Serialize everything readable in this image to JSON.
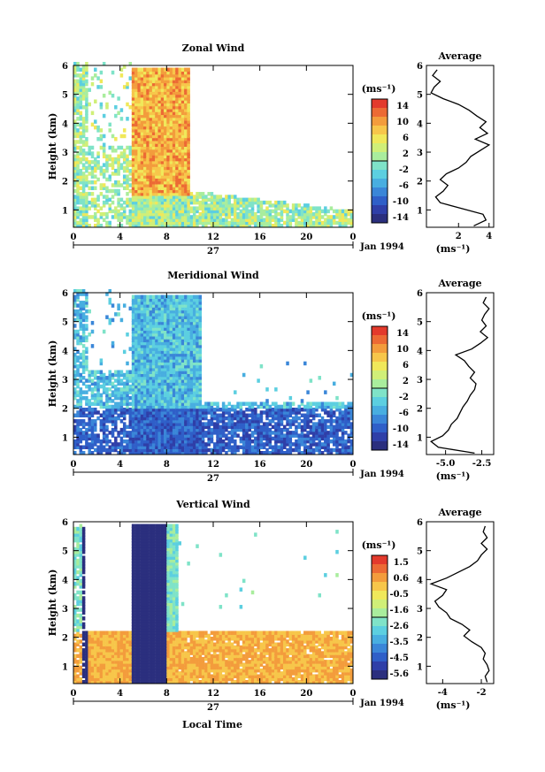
{
  "colors": {
    "scale": [
      "#2b2f7e",
      "#2f3fa8",
      "#2f5fc8",
      "#3a86d8",
      "#48aee0",
      "#5ccfe0",
      "#7fe3c8",
      "#a9ed9d",
      "#d0ef78",
      "#f0e85a",
      "#f7c64a",
      "#f39c3c",
      "#ec6a34",
      "#e33a2c"
    ]
  },
  "xaxis": {
    "ticks": [
      "0",
      "4",
      "8",
      "12",
      "16",
      "20",
      "0"
    ],
    "day_label": "27",
    "date_label": "Jan 1994",
    "label": "Local Time"
  },
  "yaxis_label": "Height (km)",
  "unit_label": "(ms⁻¹)",
  "avg_title": "Average",
  "panels": [
    {
      "title": "Zonal Wind",
      "colorbar_ticks": [
        "14",
        "10",
        "6",
        "2",
        "-2",
        "-6",
        "-10",
        "-14"
      ],
      "avg_xticks": [
        "2",
        "4"
      ],
      "avg_unit": "(ms⁻¹)"
    },
    {
      "title": "Meridional Wind",
      "colorbar_ticks": [
        "14",
        "10",
        "6",
        "2",
        "-2",
        "-6",
        "-10",
        "-14"
      ],
      "avg_xticks": [
        "-5.0",
        "-2.5"
      ],
      "avg_unit": "(ms⁻¹)"
    },
    {
      "title": "Vertical Wind",
      "colorbar_ticks": [
        "1.5",
        "0.6",
        "-0.5",
        "-1.6",
        "-2.6",
        "-3.5",
        "-4.5",
        "-5.6"
      ],
      "avg_xticks": [
        "-4",
        "-2"
      ],
      "avg_unit": "(ms⁻¹)"
    }
  ],
  "chart_data": [
    {
      "type": "heatmap",
      "title": "Zonal Wind",
      "xlabel": "",
      "ylabel": "Height (km)",
      "xlim": [
        0,
        24
      ],
      "ylim": [
        0.4,
        6
      ],
      "x_ticks": [
        "0",
        "4",
        "8",
        "12",
        "16",
        "20",
        "0"
      ],
      "y_ticks": [
        "1",
        "2",
        "3",
        "4",
        "5",
        "6"
      ],
      "colorbar": {
        "unit": "(ms⁻¹)",
        "range": [
          -14,
          14
        ],
        "ticks": [
          14,
          10,
          6,
          2,
          -2,
          -6,
          -10,
          -14
        ]
      },
      "average_profile": {
        "title": "Average",
        "xlabel": "(ms⁻¹)",
        "height_km": [
          0.4,
          0.6,
          0.8,
          1.0,
          1.2,
          1.4,
          1.6,
          1.8,
          2.0,
          2.2,
          2.4,
          2.6,
          2.8,
          3.0,
          3.2,
          3.4,
          3.6,
          3.8,
          4.0,
          4.2,
          4.4,
          4.6,
          4.8,
          5.0,
          5.2,
          5.4,
          5.6,
          5.8
        ],
        "value": [
          3.0,
          3.8,
          3.6,
          2.2,
          0.8,
          0.5,
          1.0,
          1.3,
          0.8,
          1.2,
          2.0,
          2.5,
          2.8,
          3.4,
          4.0,
          3.1,
          3.9,
          3.4,
          3.8,
          3.2,
          2.7,
          2.0,
          1.0,
          0.2,
          0.4,
          0.8,
          0.3,
          0.6
        ]
      }
    },
    {
      "type": "heatmap",
      "title": "Meridional Wind",
      "xlabel": "",
      "ylabel": "Height (km)",
      "xlim": [
        0,
        24
      ],
      "ylim": [
        0.4,
        6
      ],
      "x_ticks": [
        "0",
        "4",
        "8",
        "12",
        "16",
        "20",
        "0"
      ],
      "y_ticks": [
        "1",
        "2",
        "3",
        "4",
        "5",
        "6"
      ],
      "colorbar": {
        "unit": "(ms⁻¹)",
        "range": [
          -14,
          14
        ],
        "ticks": [
          14,
          10,
          6,
          2,
          -2,
          -6,
          -10,
          -14
        ]
      },
      "average_profile": {
        "title": "Average",
        "xlabel": "(ms⁻¹)",
        "height_km": [
          0.4,
          0.6,
          0.8,
          1.0,
          1.2,
          1.4,
          1.6,
          1.8,
          2.0,
          2.2,
          2.4,
          2.6,
          2.8,
          3.0,
          3.2,
          3.4,
          3.6,
          3.8,
          4.0,
          4.2,
          4.4,
          4.6,
          4.8,
          5.0,
          5.2,
          5.4,
          5.6,
          5.8
        ],
        "value": [
          -3.0,
          -5.5,
          -6.0,
          -5.2,
          -4.8,
          -4.6,
          -4.2,
          -4.0,
          -3.8,
          -3.5,
          -3.3,
          -3.0,
          -2.9,
          -3.3,
          -3.0,
          -3.4,
          -3.7,
          -4.3,
          -3.2,
          -2.6,
          -2.1,
          -2.6,
          -2.2,
          -2.5,
          -2.3,
          -2.0,
          -2.4,
          -2.2
        ]
      }
    },
    {
      "type": "heatmap",
      "title": "Vertical Wind",
      "xlabel": "Local Time",
      "ylabel": "Height (km)",
      "xlim": [
        0,
        24
      ],
      "ylim": [
        0.4,
        6
      ],
      "x_ticks": [
        "0",
        "4",
        "8",
        "12",
        "16",
        "20",
        "0"
      ],
      "y_ticks": [
        "1",
        "2",
        "3",
        "4",
        "5",
        "6"
      ],
      "colorbar": {
        "unit": "(ms⁻¹)",
        "range": [
          -5.6,
          1.5
        ],
        "ticks": [
          1.5,
          0.6,
          -0.5,
          -1.6,
          -2.6,
          -3.5,
          -4.5,
          -5.6
        ]
      },
      "average_profile": {
        "title": "Average",
        "xlabel": "(ms⁻¹)",
        "height_km": [
          0.4,
          0.6,
          0.8,
          1.0,
          1.2,
          1.4,
          1.6,
          1.8,
          2.0,
          2.2,
          2.4,
          2.6,
          2.8,
          3.0,
          3.2,
          3.4,
          3.6,
          3.8,
          4.0,
          4.2,
          4.4,
          4.6,
          4.8,
          5.0,
          5.2,
          5.4,
          5.6,
          5.8
        ],
        "value": [
          -1.7,
          -1.8,
          -1.6,
          -1.7,
          -1.9,
          -1.8,
          -2.0,
          -2.5,
          -2.9,
          -2.6,
          -3.0,
          -3.6,
          -3.8,
          -4.2,
          -4.4,
          -4.0,
          -3.8,
          -4.6,
          -3.8,
          -3.2,
          -2.6,
          -2.2,
          -2.0,
          -1.7,
          -2.0,
          -1.7,
          -1.9,
          -1.8
        ]
      }
    }
  ]
}
